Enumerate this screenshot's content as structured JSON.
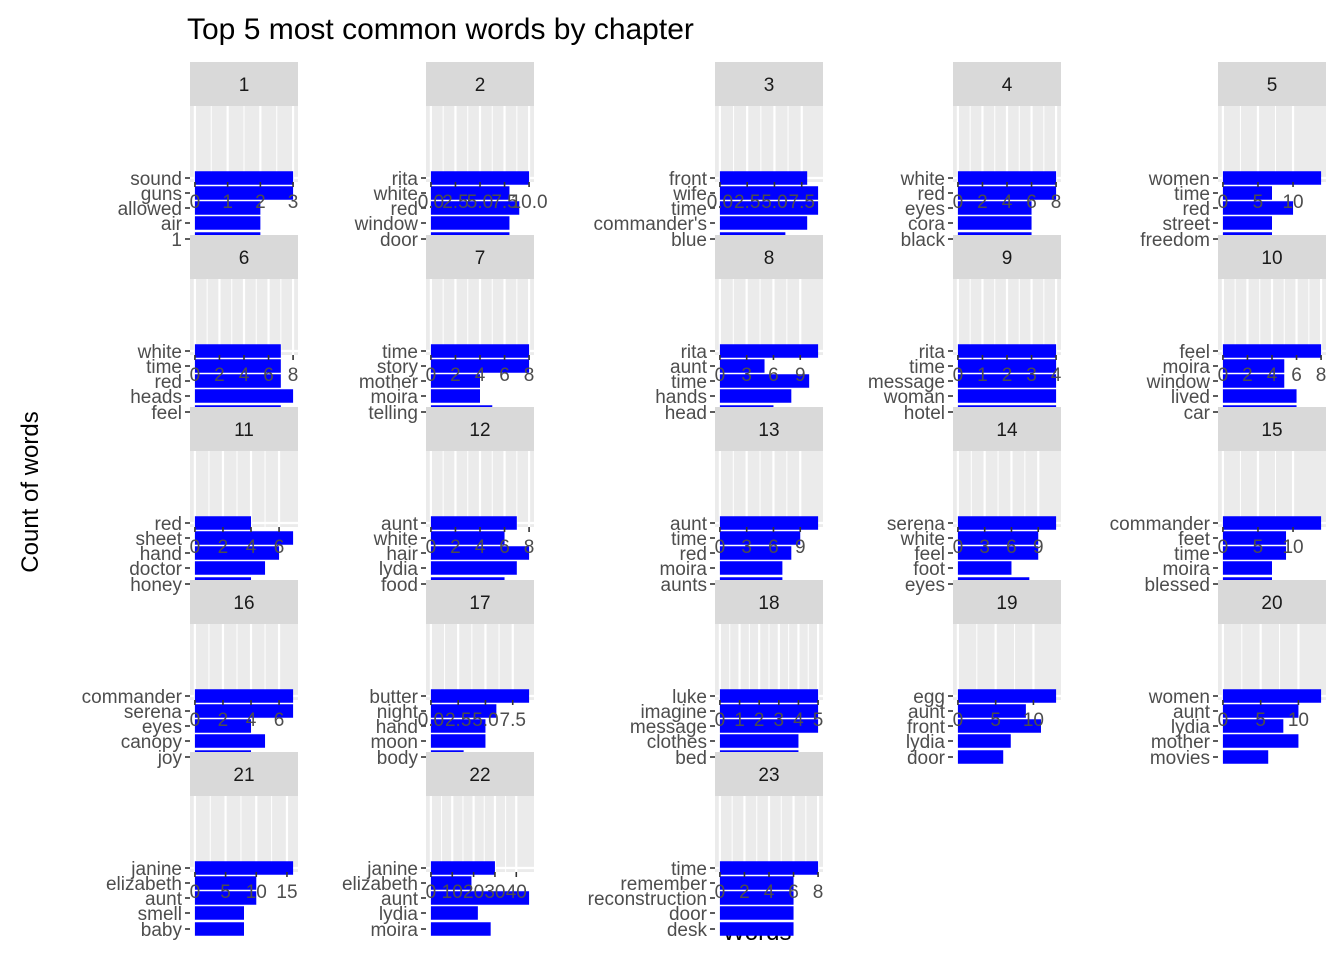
{
  "chart_data": {
    "type": "bar",
    "orientation": "horizontal",
    "title": "Top 5 most common words by chapter",
    "xlabel": "Words",
    "ylabel": "Count of words",
    "bar_color": "#0000ff",
    "panel_background": "#ebebeb",
    "strip_background": "#d9d9d9",
    "grid": true,
    "facets": [
      {
        "label": "1",
        "categories": [
          "sound",
          "guns",
          "allowed",
          "air",
          "1"
        ],
        "values": [
          3,
          3,
          2,
          2,
          2
        ],
        "ticks": [
          0,
          1,
          2,
          3
        ],
        "tick_labels": [
          "0",
          "1",
          "2",
          "3"
        ],
        "xlim": [
          -0.15,
          3.15
        ]
      },
      {
        "label": "2",
        "categories": [
          "rita",
          "white",
          "red",
          "window",
          "door"
        ],
        "values": [
          10,
          8,
          9,
          8,
          8
        ],
        "ticks": [
          0,
          2.5,
          5,
          7.5,
          10
        ],
        "tick_labels": [
          "0.0",
          "2.5",
          "5.0",
          "7.5",
          "10.0"
        ],
        "xlim": [
          -0.5,
          10.5
        ]
      },
      {
        "label": "3",
        "categories": [
          "front",
          "wife",
          "time",
          "commander's",
          "blue"
        ],
        "values": [
          8,
          9,
          9,
          8,
          6
        ],
        "ticks": [
          0,
          2.5,
          5,
          7.5
        ],
        "tick_labels": [
          "0.0",
          "2.5",
          "5.0",
          "7.5"
        ],
        "xlim": [
          -0.45,
          9.45
        ]
      },
      {
        "label": "4",
        "categories": [
          "white",
          "red",
          "eyes",
          "cora",
          "black"
        ],
        "values": [
          8,
          8,
          6,
          6,
          6
        ],
        "ticks": [
          0,
          2,
          4,
          6,
          8
        ],
        "tick_labels": [
          "0",
          "2",
          "4",
          "6",
          "8"
        ],
        "xlim": [
          -0.4,
          8.4
        ]
      },
      {
        "label": "5",
        "categories": [
          "women",
          "time",
          "red",
          "street",
          "freedom"
        ],
        "values": [
          14,
          7,
          10,
          7,
          7
        ],
        "ticks": [
          0,
          5,
          10
        ],
        "tick_labels": [
          "0",
          "5",
          "10"
        ],
        "xlim": [
          -0.7,
          14.7
        ]
      },
      {
        "label": "6",
        "categories": [
          "white",
          "time",
          "red",
          "heads",
          "feel"
        ],
        "values": [
          7,
          7,
          7,
          8,
          7
        ],
        "ticks": [
          0,
          2,
          4,
          6,
          8
        ],
        "tick_labels": [
          "0",
          "2",
          "4",
          "6",
          "8"
        ],
        "xlim": [
          -0.4,
          8.4
        ]
      },
      {
        "label": "7",
        "categories": [
          "time",
          "story",
          "mother",
          "moira",
          "telling"
        ],
        "values": [
          8,
          8,
          4,
          4,
          5
        ],
        "ticks": [
          0,
          2,
          4,
          6,
          8
        ],
        "tick_labels": [
          "0",
          "2",
          "4",
          "6",
          "8"
        ],
        "xlim": [
          -0.4,
          8.4
        ]
      },
      {
        "label": "8",
        "categories": [
          "rita",
          "aunt",
          "time",
          "hands",
          "head"
        ],
        "values": [
          11,
          5,
          10,
          8,
          6
        ],
        "ticks": [
          0,
          3,
          6,
          9
        ],
        "tick_labels": [
          "0",
          "3",
          "6",
          "9"
        ],
        "xlim": [
          -0.55,
          11.55
        ]
      },
      {
        "label": "9",
        "categories": [
          "rita",
          "time",
          "message",
          "woman",
          "hotel"
        ],
        "values": [
          4,
          4,
          4,
          4,
          4
        ],
        "ticks": [
          0,
          1,
          2,
          3,
          4
        ],
        "tick_labels": [
          "0",
          "1",
          "2",
          "3",
          "4"
        ],
        "xlim": [
          -0.2,
          4.2
        ]
      },
      {
        "label": "10",
        "categories": [
          "feel",
          "moira",
          "window",
          "lived",
          "car"
        ],
        "values": [
          8,
          5,
          5,
          6,
          6
        ],
        "ticks": [
          0,
          2,
          4,
          6,
          8
        ],
        "tick_labels": [
          "0",
          "2",
          "4",
          "6",
          "8"
        ],
        "xlim": [
          -0.4,
          8.4
        ]
      },
      {
        "label": "11",
        "categories": [
          "red",
          "sheet",
          "hand",
          "doctor",
          "honey"
        ],
        "values": [
          4,
          7,
          6,
          5,
          4
        ],
        "ticks": [
          0,
          2,
          4,
          6
        ],
        "tick_labels": [
          "0",
          "2",
          "4",
          "6"
        ],
        "xlim": [
          -0.35,
          7.35
        ]
      },
      {
        "label": "12",
        "categories": [
          "aunt",
          "white",
          "hair",
          "lydia",
          "food"
        ],
        "values": [
          7,
          6,
          8,
          7,
          6
        ],
        "ticks": [
          0,
          2,
          4,
          6,
          8
        ],
        "tick_labels": [
          "0",
          "2",
          "4",
          "6",
          "8"
        ],
        "xlim": [
          -0.4,
          8.4
        ]
      },
      {
        "label": "13",
        "categories": [
          "aunt",
          "time",
          "red",
          "moira",
          "aunts"
        ],
        "values": [
          11,
          9,
          8,
          7,
          7
        ],
        "ticks": [
          0,
          3,
          6,
          9
        ],
        "tick_labels": [
          "0",
          "3",
          "6",
          "9"
        ],
        "xlim": [
          -0.55,
          11.55
        ]
      },
      {
        "label": "14",
        "categories": [
          "serena",
          "white",
          "feel",
          "foot",
          "eyes"
        ],
        "values": [
          11,
          9,
          9,
          6,
          8
        ],
        "ticks": [
          0,
          3,
          6,
          9
        ],
        "tick_labels": [
          "0",
          "3",
          "6",
          "9"
        ],
        "xlim": [
          -0.55,
          11.55
        ]
      },
      {
        "label": "15",
        "categories": [
          "commander",
          "feet",
          "time",
          "moira",
          "blessed"
        ],
        "values": [
          14,
          9,
          9,
          7,
          7
        ],
        "ticks": [
          0,
          5,
          10
        ],
        "tick_labels": [
          "0",
          "5",
          "10"
        ],
        "xlim": [
          -0.7,
          14.7
        ]
      },
      {
        "label": "16",
        "categories": [
          "commander",
          "serena",
          "eyes",
          "canopy",
          "joy"
        ],
        "values": [
          7,
          7,
          4,
          5,
          4
        ],
        "ticks": [
          0,
          2,
          4,
          6
        ],
        "tick_labels": [
          "0",
          "2",
          "4",
          "6"
        ],
        "xlim": [
          -0.35,
          7.35
        ]
      },
      {
        "label": "17",
        "categories": [
          "butter",
          "night",
          "hand",
          "moon",
          "body"
        ],
        "values": [
          9,
          6,
          5,
          5,
          3
        ],
        "ticks": [
          0,
          2.5,
          5,
          7.5
        ],
        "tick_labels": [
          "0.0",
          "2.5",
          "5.0",
          "7.5"
        ],
        "xlim": [
          -0.45,
          9.45
        ]
      },
      {
        "label": "18",
        "categories": [
          "luke",
          "imagine",
          "message",
          "clothes",
          "bed"
        ],
        "values": [
          5,
          5,
          5,
          4,
          4
        ],
        "ticks": [
          0,
          1,
          2,
          3,
          4,
          5
        ],
        "tick_labels": [
          "0",
          "1",
          "2",
          "3",
          "4",
          "5"
        ],
        "xlim": [
          -0.25,
          5.25
        ]
      },
      {
        "label": "19",
        "categories": [
          "egg",
          "aunt",
          "front",
          "lydia",
          "door"
        ],
        "values": [
          13,
          9,
          11,
          7,
          6
        ],
        "ticks": [
          0,
          5,
          10
        ],
        "tick_labels": [
          "0",
          "5",
          "10"
        ],
        "xlim": [
          -0.65,
          13.65
        ]
      },
      {
        "label": "20",
        "categories": [
          "women",
          "aunt",
          "lydia",
          "mother",
          "movies"
        ],
        "values": [
          13,
          10,
          8,
          10,
          6
        ],
        "ticks": [
          0,
          5,
          10
        ],
        "tick_labels": [
          "0",
          "5",
          "10"
        ],
        "xlim": [
          -0.65,
          13.65
        ]
      },
      {
        "label": "21",
        "categories": [
          "janine",
          "elizabeth",
          "aunt",
          "smell",
          "baby"
        ],
        "values": [
          16,
          10,
          10,
          8,
          8
        ],
        "ticks": [
          0,
          5,
          10,
          15
        ],
        "tick_labels": [
          "0",
          "5",
          "10",
          "15"
        ],
        "xlim": [
          -0.8,
          16.8
        ]
      },
      {
        "label": "22",
        "categories": [
          "janine",
          "elizabeth",
          "aunt",
          "lydia",
          "moira"
        ],
        "values": [
          30,
          19,
          46,
          22,
          28
        ],
        "ticks": [
          0,
          10,
          20,
          30,
          40
        ],
        "tick_labels": [
          "0",
          "10",
          "20",
          "30",
          "40"
        ],
        "xlim": [
          -2.3,
          48.3
        ]
      },
      {
        "label": "23",
        "categories": [
          "time",
          "remember",
          "reconstruction",
          "door",
          "desk"
        ],
        "values": [
          8,
          6,
          6,
          6,
          6
        ],
        "ticks": [
          0,
          2,
          4,
          6,
          8
        ],
        "tick_labels": [
          "0",
          "2",
          "4",
          "6",
          "8"
        ],
        "xlim": [
          -0.4,
          8.4
        ]
      }
    ]
  }
}
